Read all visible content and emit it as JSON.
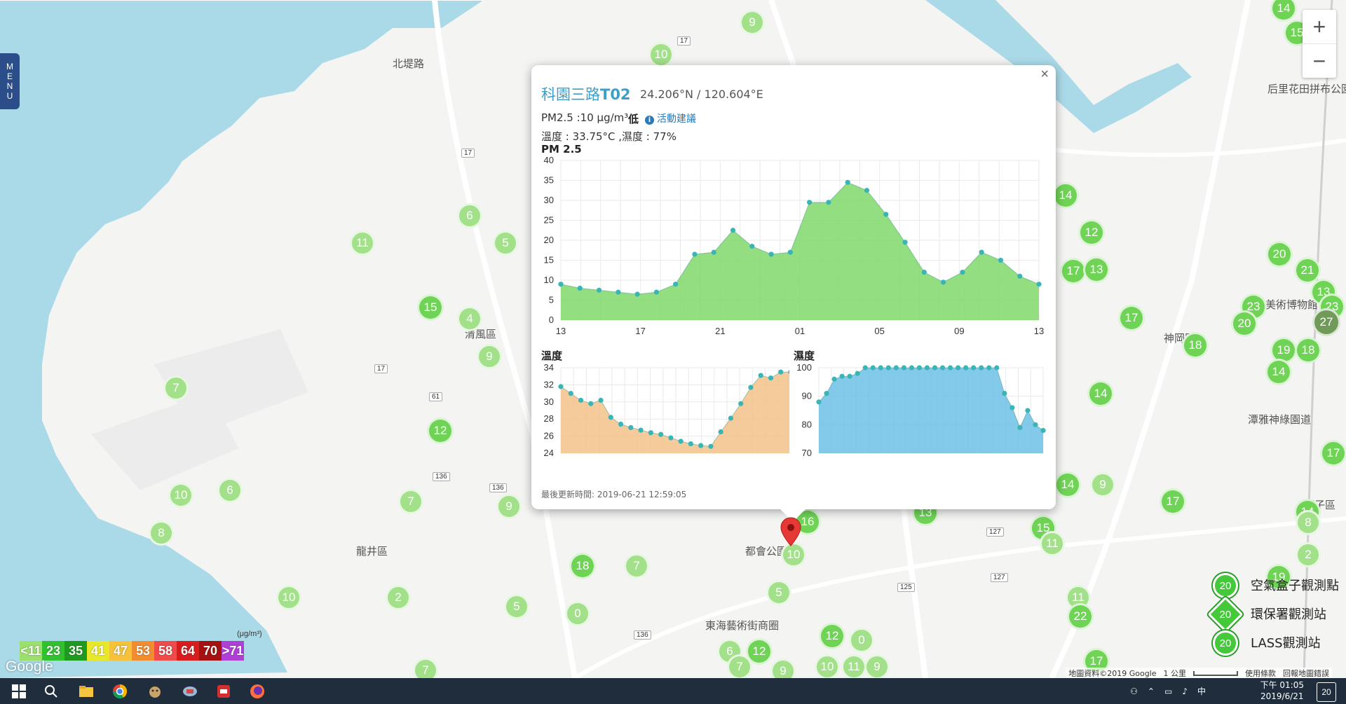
{
  "map": {
    "places": [
      {
        "name": "北堤路",
        "x": 560,
        "y": 80
      },
      {
        "name": "清風區",
        "x": 663,
        "y": 466
      },
      {
        "name": "龍井區",
        "x": 508,
        "y": 776
      },
      {
        "name": "都會公園",
        "x": 1063,
        "y": 776
      },
      {
        "name": "東海藝術街商圈",
        "x": 1006,
        "y": 882
      },
      {
        "name": "台灣美術博物館",
        "x": 1775,
        "y": 424
      },
      {
        "name": "神岡區",
        "x": 1660,
        "y": 472
      },
      {
        "name": "潭雅神綠園道",
        "x": 1780,
        "y": 588
      },
      {
        "name": "潭子區",
        "x": 1860,
        "y": 710
      },
      {
        "name": "后里花田拼布公園",
        "x": 1808,
        "y": 116
      }
    ],
    "highways": [
      {
        "label": "17",
        "x": 966,
        "y": 52
      },
      {
        "label": "17",
        "x": 658,
        "y": 212
      },
      {
        "label": "17",
        "x": 534,
        "y": 520
      },
      {
        "label": "61",
        "x": 612,
        "y": 560
      },
      {
        "label": "136",
        "x": 617,
        "y": 674
      },
      {
        "label": "136",
        "x": 698,
        "y": 690
      },
      {
        "label": "136",
        "x": 904,
        "y": 900
      },
      {
        "label": "125",
        "x": 1280,
        "y": 832
      },
      {
        "label": "127",
        "x": 1407,
        "y": 753
      },
      {
        "label": "127",
        "x": 1413,
        "y": 818
      }
    ],
    "markers": [
      {
        "v": "9",
        "x": 1073,
        "y": 32,
        "s": "light"
      },
      {
        "v": "10",
        "x": 943,
        "y": 78,
        "s": "light"
      },
      {
        "v": "6",
        "x": 670,
        "y": 308,
        "s": "light"
      },
      {
        "v": "11",
        "x": 517,
        "y": 347,
        "s": "light"
      },
      {
        "v": "5",
        "x": 721,
        "y": 347,
        "s": "light"
      },
      {
        "v": "15",
        "x": 614,
        "y": 439,
        "s": "mid"
      },
      {
        "v": "4",
        "x": 670,
        "y": 455,
        "s": "light"
      },
      {
        "v": "9",
        "x": 698,
        "y": 509,
        "s": "light"
      },
      {
        "v": "7",
        "x": 251,
        "y": 554,
        "s": "light"
      },
      {
        "v": "12",
        "x": 628,
        "y": 615,
        "s": "mid"
      },
      {
        "v": "10",
        "x": 258,
        "y": 707,
        "s": "light"
      },
      {
        "v": "6",
        "x": 328,
        "y": 700,
        "s": "light"
      },
      {
        "v": "8",
        "x": 230,
        "y": 761,
        "s": "light"
      },
      {
        "v": "7",
        "x": 586,
        "y": 716,
        "s": "light"
      },
      {
        "v": "9",
        "x": 726,
        "y": 723,
        "s": "light"
      },
      {
        "v": "18",
        "x": 831,
        "y": 808,
        "s": "mid"
      },
      {
        "v": "7",
        "x": 908,
        "y": 808,
        "s": "light"
      },
      {
        "v": "10",
        "x": 412,
        "y": 853,
        "s": "light"
      },
      {
        "v": "2",
        "x": 568,
        "y": 853,
        "s": "light"
      },
      {
        "v": "5",
        "x": 737,
        "y": 866,
        "s": "light"
      },
      {
        "v": "0",
        "x": 824,
        "y": 876,
        "s": "light"
      },
      {
        "v": "7",
        "x": 607,
        "y": 957,
        "s": "light"
      },
      {
        "v": "16",
        "x": 1152,
        "y": 745,
        "s": "mid"
      },
      {
        "v": "10",
        "x": 1132,
        "y": 792,
        "s": "light"
      },
      {
        "v": "5",
        "x": 1111,
        "y": 846,
        "s": "light"
      },
      {
        "v": "12",
        "x": 1187,
        "y": 908,
        "s": "mid"
      },
      {
        "v": "0",
        "x": 1229,
        "y": 914,
        "s": "light"
      },
      {
        "v": "6",
        "x": 1041,
        "y": 930,
        "s": "light"
      },
      {
        "v": "12",
        "x": 1083,
        "y": 930,
        "s": "mid"
      },
      {
        "v": "7",
        "x": 1055,
        "y": 952,
        "s": "light"
      },
      {
        "v": "9",
        "x": 1117,
        "y": 958,
        "s": "light"
      },
      {
        "v": "10",
        "x": 1180,
        "y": 952,
        "s": "light"
      },
      {
        "v": "11",
        "x": 1218,
        "y": 952,
        "s": "light"
      },
      {
        "v": "9",
        "x": 1251,
        "y": 952,
        "s": "light"
      },
      {
        "v": "14",
        "x": 1520,
        "y": 279,
        "s": "mid"
      },
      {
        "v": "12",
        "x": 1557,
        "y": 332,
        "s": "mid"
      },
      {
        "v": "17",
        "x": 1531,
        "y": 387,
        "s": "mid"
      },
      {
        "v": "13",
        "x": 1564,
        "y": 385,
        "s": "mid"
      },
      {
        "v": "17",
        "x": 1614,
        "y": 454,
        "s": "mid"
      },
      {
        "v": "14",
        "x": 1570,
        "y": 562,
        "s": "mid"
      },
      {
        "v": "14",
        "x": 1523,
        "y": 692,
        "s": "mid"
      },
      {
        "v": "9",
        "x": 1573,
        "y": 692,
        "s": "light"
      },
      {
        "v": "13",
        "x": 1320,
        "y": 732,
        "s": "mid"
      },
      {
        "v": "17",
        "x": 1673,
        "y": 716,
        "s": "mid"
      },
      {
        "v": "15",
        "x": 1488,
        "y": 754,
        "s": "mid"
      },
      {
        "v": "11",
        "x": 1501,
        "y": 776,
        "s": "light"
      },
      {
        "v": "11",
        "x": 1538,
        "y": 853,
        "s": "light"
      },
      {
        "v": "22",
        "x": 1541,
        "y": 880,
        "s": "mid"
      },
      {
        "v": "17",
        "x": 1564,
        "y": 944,
        "s": "mid"
      },
      {
        "v": "18",
        "x": 1705,
        "y": 493,
        "s": "mid"
      },
      {
        "v": "20",
        "x": 1825,
        "y": 363,
        "s": "mid"
      },
      {
        "v": "21",
        "x": 1865,
        "y": 386,
        "s": "mid"
      },
      {
        "v": "13",
        "x": 1888,
        "y": 417,
        "s": "mid"
      },
      {
        "v": "23",
        "x": 1900,
        "y": 438,
        "s": "mid"
      },
      {
        "v": "23",
        "x": 1788,
        "y": 438,
        "s": "mid"
      },
      {
        "v": "20",
        "x": 1775,
        "y": 462,
        "s": "mid"
      },
      {
        "v": "27",
        "x": 1892,
        "y": 460,
        "s": "dark"
      },
      {
        "v": "19",
        "x": 1831,
        "y": 500,
        "s": "mid"
      },
      {
        "v": "18",
        "x": 1866,
        "y": 500,
        "s": "mid"
      },
      {
        "v": "14",
        "x": 1824,
        "y": 531,
        "s": "mid"
      },
      {
        "v": "17",
        "x": 1902,
        "y": 647,
        "s": "mid"
      },
      {
        "v": "14",
        "x": 1865,
        "y": 731,
        "s": "mid"
      },
      {
        "v": "8",
        "x": 1866,
        "y": 746,
        "s": "light"
      },
      {
        "v": "2",
        "x": 1866,
        "y": 792,
        "s": "light"
      },
      {
        "v": "19",
        "x": 1824,
        "y": 824,
        "s": "mid"
      },
      {
        "v": "14",
        "x": 1831,
        "y": 12,
        "s": "mid"
      },
      {
        "v": "15",
        "x": 1850,
        "y": 47,
        "s": "mid"
      }
    ]
  },
  "menu": {
    "letters": [
      "M",
      "E",
      "N",
      "U"
    ]
  },
  "zoom": {
    "in_label": "+",
    "out_label": "−"
  },
  "popup": {
    "close_label": "×",
    "station_prefix": "科園三路",
    "station_code": "T02",
    "coords": "24.206°N / 120.604°E",
    "pm_text": "PM2.5 :10 μg/m³",
    "pm_level": "低",
    "advice_label": "活動建議",
    "advice_icon": "info-icon",
    "temp_hum_text": "溫度 : 33.75°C ,濕度 : 77%",
    "pm_chart_title": "PM 2.5",
    "temp_chart_title": "溫度",
    "hum_chart_title": "濕度",
    "updated_text": "最後更新時間: 2019-06-21 12:59:05"
  },
  "chart_data": [
    {
      "type": "area",
      "title": "PM 2.5",
      "x_ticks": [
        "13",
        "17",
        "21",
        "01",
        "05",
        "09",
        "13"
      ],
      "ylim": [
        0,
        40
      ],
      "y_ticks": [
        0,
        5,
        10,
        15,
        20,
        25,
        30,
        35,
        40
      ],
      "values": [
        9,
        8,
        7.5,
        7,
        6.5,
        7,
        9,
        16.5,
        17,
        22.5,
        18.5,
        16.5,
        17,
        29.5,
        29.5,
        34.5,
        32.5,
        26.5,
        19.5,
        12,
        9.5,
        12,
        17,
        15,
        11,
        9
      ],
      "fill": "#7fd86a",
      "grid": true
    },
    {
      "type": "area",
      "title": "溫度",
      "ylim": [
        24,
        34
      ],
      "y_ticks": [
        24,
        26,
        28,
        30,
        32,
        34
      ],
      "values": [
        31.8,
        31,
        30.2,
        29.8,
        30.2,
        28.2,
        27.4,
        27,
        26.7,
        26.4,
        26.2,
        25.8,
        25.4,
        25.1,
        24.9,
        24.8,
        26.5,
        28.1,
        29.8,
        31.7,
        33.1,
        32.8,
        33.5,
        33.5
      ],
      "fill": "#f3c28a",
      "grid": true
    },
    {
      "type": "area",
      "title": "濕度",
      "ylim": [
        70,
        100
      ],
      "y_ticks": [
        70,
        80,
        90,
        100
      ],
      "values": [
        88,
        91,
        96,
        97,
        97,
        98,
        100,
        100,
        100,
        100,
        100,
        100,
        100,
        100,
        100,
        100,
        100,
        100,
        100,
        100,
        100,
        100,
        100,
        100,
        91,
        86,
        79,
        85,
        80,
        78
      ],
      "fill": "#6cc0e6",
      "grid": true
    }
  ],
  "legend": {
    "unit": "(μg/m³)",
    "bins": [
      {
        "label": "<11",
        "color": "#9be06c"
      },
      {
        "label": "23",
        "color": "#31c12f"
      },
      {
        "label": "35",
        "color": "#1e9a1e"
      },
      {
        "label": "41",
        "color": "#e8e82a"
      },
      {
        "label": "47",
        "color": "#f5c23a"
      },
      {
        "label": "53",
        "color": "#f28d2f"
      },
      {
        "label": "58",
        "color": "#f04a4a"
      },
      {
        "label": "64",
        "color": "#d71d1d"
      },
      {
        "label": "70",
        "color": "#a61212"
      },
      {
        "label": ">71",
        "color": "#b03fd8"
      }
    ]
  },
  "station_legend": {
    "items": [
      {
        "label": "空氣盒子觀測點",
        "icon_value": "20"
      },
      {
        "label": "環保署觀測站",
        "icon_value": "20"
      },
      {
        "label": "LASS觀測站",
        "icon_value": "20"
      }
    ]
  },
  "google_logo": "Google",
  "attribution": {
    "map_data": "地圖資料©2019 Google",
    "scale": "1 公里",
    "terms": "使用條款",
    "report": "回報地圖錯誤"
  },
  "taskbar": {
    "time": "下午 01:05",
    "date": "2019/6/21",
    "ime": "中",
    "notifications": "20",
    "icons": [
      "windows-start-icon",
      "search-icon",
      "file-explorer-icon",
      "chrome-icon",
      "app-icon",
      "app-icon-2",
      "app-icon-3",
      "firefox-icon"
    ]
  }
}
